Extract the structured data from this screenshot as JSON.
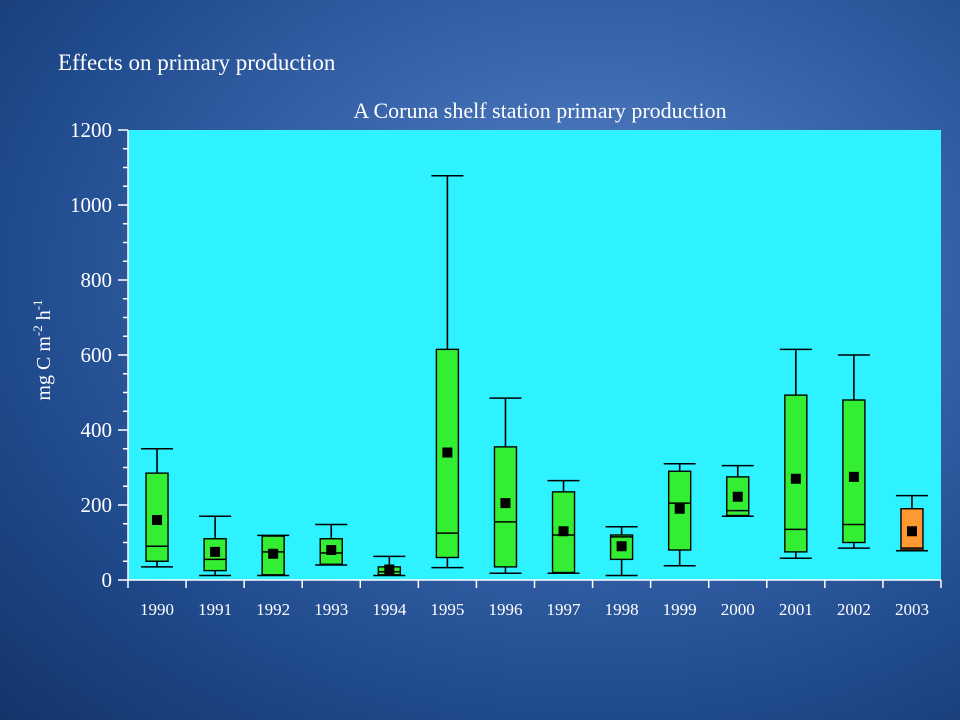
{
  "slide": {
    "title": "Effects on primary production"
  },
  "colors": {
    "plot_background": "#2ef2ff",
    "box_default": "#33ee33",
    "box_highlight": "#ff9933",
    "marker": "#000000",
    "text": "#ffffff"
  },
  "chart_data": {
    "type": "box",
    "title": "A Coruna shelf station primary production",
    "ylabel": "mg C m-2 h-1",
    "ylabel_parts": {
      "base1": "mg C m",
      "exp1": "-2",
      "base2": " h",
      "exp2": "-1"
    },
    "ylim": [
      0,
      1200
    ],
    "yticks": [
      0,
      200,
      400,
      600,
      800,
      1000,
      1200
    ],
    "grid": false,
    "categories": [
      "1990",
      "1991",
      "1992",
      "1993",
      "1994",
      "1995",
      "1996",
      "1997",
      "1998",
      "1999",
      "2000",
      "2001",
      "2002",
      "2003"
    ],
    "boxes": [
      {
        "year": "1990",
        "whisker_low": 35,
        "q1": 50,
        "median": 90,
        "q3": 285,
        "whisker_high": 350,
        "mean": 160
      },
      {
        "year": "1991",
        "whisker_low": 12,
        "q1": 25,
        "median": 55,
        "q3": 110,
        "whisker_high": 170,
        "mean": 75
      },
      {
        "year": "1992",
        "whisker_low": 12,
        "q1": 14,
        "median": 75,
        "q3": 117,
        "whisker_high": 119,
        "mean": 70
      },
      {
        "year": "1993",
        "whisker_low": 40,
        "q1": 42,
        "median": 72,
        "q3": 110,
        "whisker_high": 148,
        "mean": 80
      },
      {
        "year": "1994",
        "whisker_low": 12,
        "q1": 14,
        "median": 22,
        "q3": 35,
        "whisker_high": 63,
        "mean": 28
      },
      {
        "year": "1995",
        "whisker_low": 33,
        "q1": 60,
        "median": 125,
        "q3": 615,
        "whisker_high": 1078,
        "mean": 340
      },
      {
        "year": "1996",
        "whisker_low": 18,
        "q1": 35,
        "median": 155,
        "q3": 355,
        "whisker_high": 485,
        "mean": 205
      },
      {
        "year": "1997",
        "whisker_low": 18,
        "q1": 20,
        "median": 120,
        "q3": 235,
        "whisker_high": 265,
        "mean": 130
      },
      {
        "year": "1998",
        "whisker_low": 12,
        "q1": 55,
        "median": 115,
        "q3": 120,
        "whisker_high": 142,
        "mean": 90
      },
      {
        "year": "1999",
        "whisker_low": 38,
        "q1": 80,
        "median": 205,
        "q3": 290,
        "whisker_high": 310,
        "mean": 190
      },
      {
        "year": "2000",
        "whisker_low": 170,
        "q1": 172,
        "median": 185,
        "q3": 275,
        "whisker_high": 305,
        "mean": 222
      },
      {
        "year": "2001",
        "whisker_low": 58,
        "q1": 75,
        "median": 135,
        "q3": 493,
        "whisker_high": 615,
        "mean": 270
      },
      {
        "year": "2002",
        "whisker_low": 85,
        "q1": 100,
        "median": 148,
        "q3": 480,
        "whisker_high": 600,
        "mean": 275
      },
      {
        "year": "2003",
        "whisker_low": 78,
        "q1": 80,
        "median": 85,
        "q3": 190,
        "whisker_high": 225,
        "mean": 130,
        "highlight": true
      }
    ]
  }
}
